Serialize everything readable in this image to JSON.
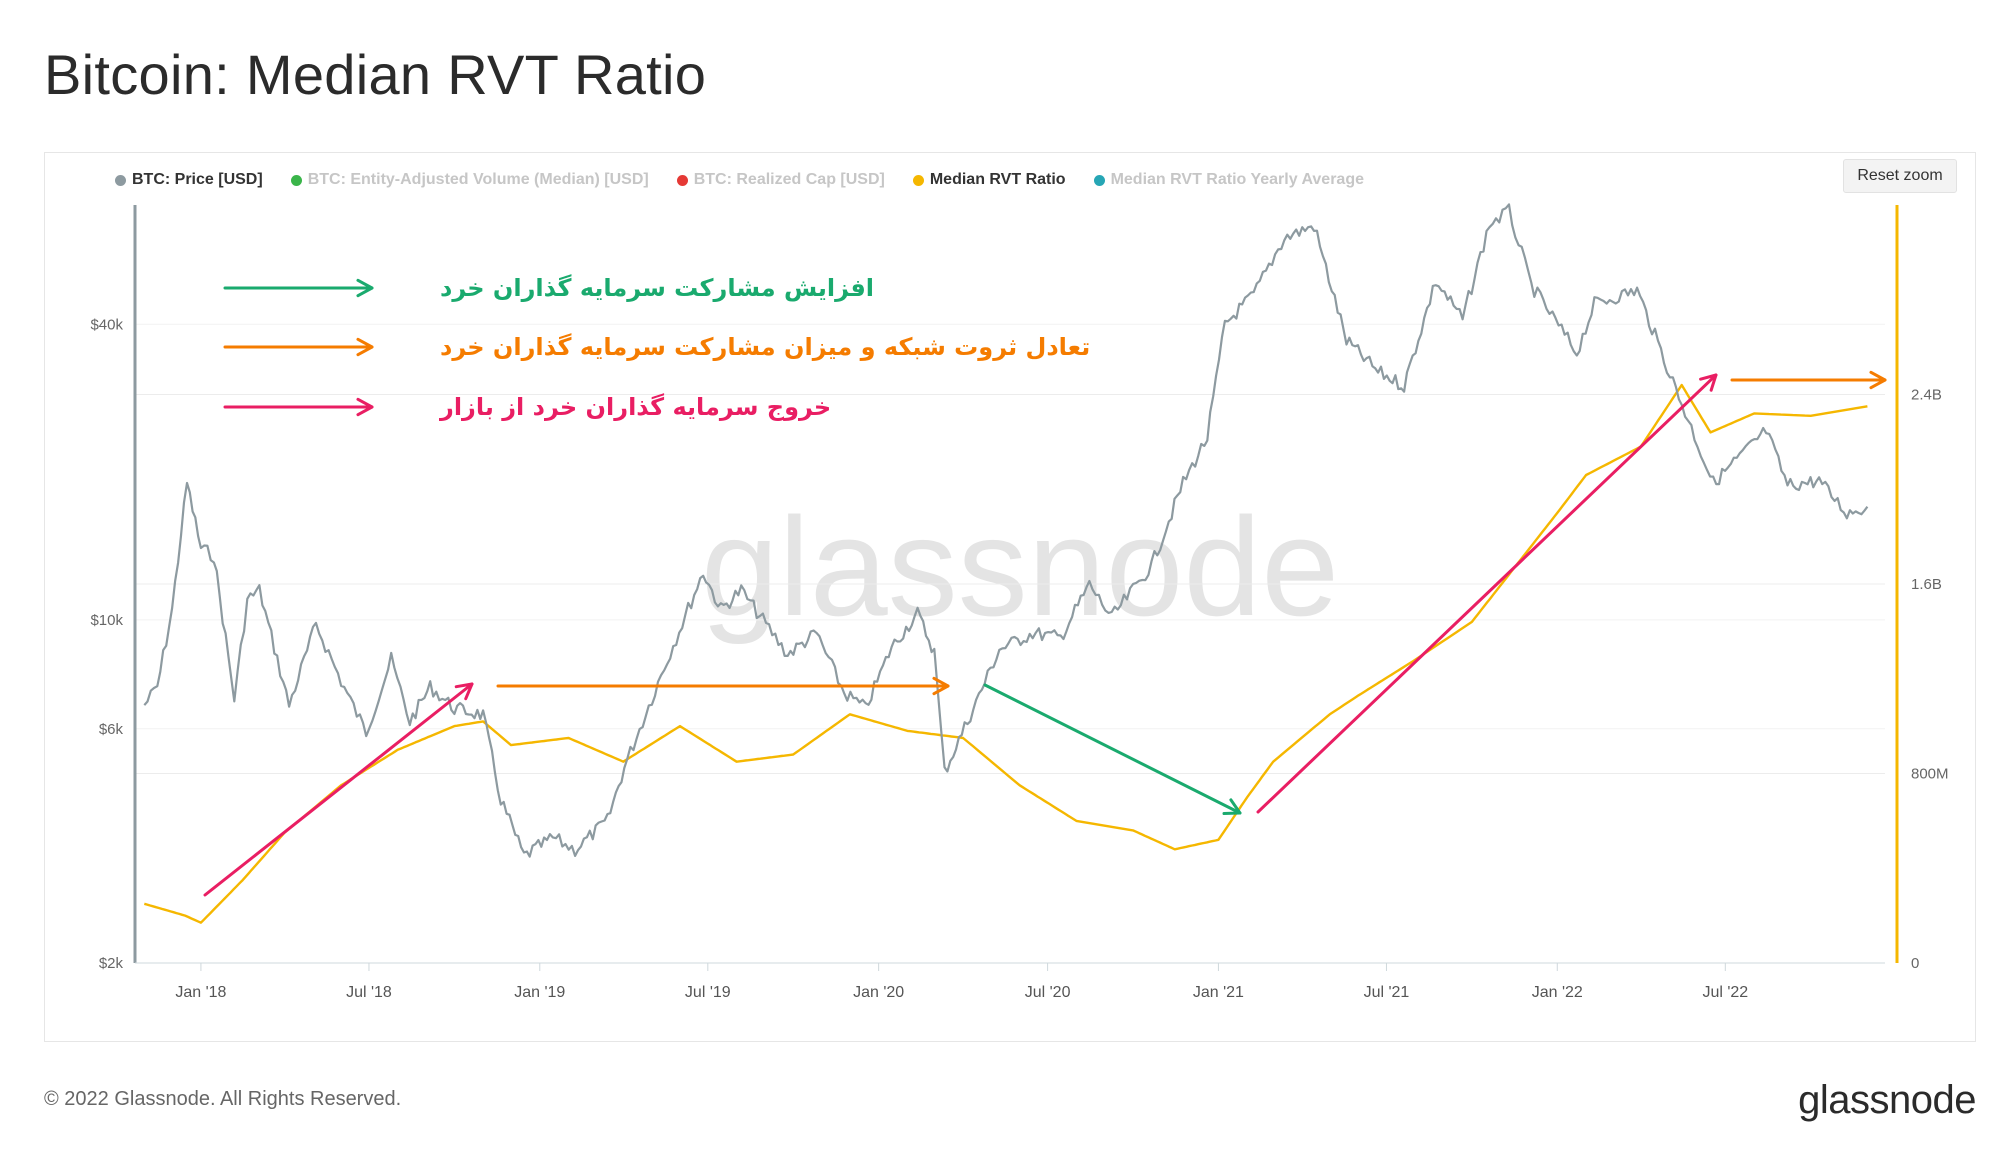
{
  "page": {
    "title": "Bitcoin: Median RVT Ratio",
    "reset_zoom": "Reset zoom",
    "copyright": "© 2022 Glassnode. All Rights Reserved.",
    "logo": "glassnode",
    "watermark": "glassnode"
  },
  "legend": [
    {
      "label": "BTC: Price [USD]",
      "color": "#8d9aa0",
      "active": true
    },
    {
      "label": "BTC: Entity-Adjusted Volume (Median) [USD]",
      "color": "#3ab54a",
      "active": false
    },
    {
      "label": "BTC: Realized Cap [USD]",
      "color": "#e53935",
      "active": false
    },
    {
      "label": "Median RVT Ratio",
      "color": "#f5b700",
      "active": true
    },
    {
      "label": "Median RVT Ratio Yearly Average",
      "color": "#26a6b5",
      "active": false
    }
  ],
  "annotations": {
    "legend_lines": [
      {
        "text": "افزایش مشارکت سرمایه گذاران خرد",
        "color": "#1aaa6e"
      },
      {
        "text": "تعادل ثروت شبکه و میزان مشارکت سرمایه گذاران  خرد",
        "color": "#f57c00"
      },
      {
        "text": "خروج سرمایه گذاران خرد از بازار",
        "color": "#e91e63"
      }
    ]
  },
  "chart_data": {
    "type": "line",
    "x_ticks": [
      "Jan '18",
      "Jul '18",
      "Jan '19",
      "Jul '19",
      "Jan '20",
      "Jul '20",
      "Jan '21",
      "Jul '21",
      "Jan '22",
      "Jul '22"
    ],
    "y_left": {
      "scale": "log",
      "ticks": [
        "$40k",
        "$10k",
        "$6k",
        "$2k"
      ],
      "range": [
        2000,
        70000
      ]
    },
    "y_right": {
      "scale": "linear",
      "ticks": [
        "2.4B",
        "1.6B",
        "800M",
        "0"
      ],
      "range": [
        0,
        3200000000
      ]
    },
    "series": [
      {
        "name": "BTC: Price [USD]",
        "axis": "left",
        "color": "#8d9aa0",
        "points": [
          [
            "2017-11-01",
            6700
          ],
          [
            "2017-11-15",
            7300
          ],
          [
            "2017-12-01",
            10500
          ],
          [
            "2017-12-17",
            19000
          ],
          [
            "2018-01-01",
            14000
          ],
          [
            "2018-01-15",
            13500
          ],
          [
            "2018-02-06",
            6900
          ],
          [
            "2018-02-20",
            11000
          ],
          [
            "2018-03-05",
            11500
          ],
          [
            "2018-04-06",
            6700
          ],
          [
            "2018-05-05",
            9800
          ],
          [
            "2018-06-01",
            7500
          ],
          [
            "2018-06-28",
            5900
          ],
          [
            "2018-07-25",
            8300
          ],
          [
            "2018-08-14",
            6200
          ],
          [
            "2018-09-05",
            7300
          ],
          [
            "2018-10-01",
            6600
          ],
          [
            "2018-11-01",
            6400
          ],
          [
            "2018-11-20",
            4300
          ],
          [
            "2018-12-15",
            3300
          ],
          [
            "2019-01-15",
            3600
          ],
          [
            "2019-02-08",
            3400
          ],
          [
            "2019-03-15",
            3900
          ],
          [
            "2019-04-02",
            5000
          ],
          [
            "2019-05-15",
            8000
          ],
          [
            "2019-06-26",
            12500
          ],
          [
            "2019-07-15",
            10500
          ],
          [
            "2019-08-06",
            11500
          ],
          [
            "2019-09-25",
            8500
          ],
          [
            "2019-10-26",
            9400
          ],
          [
            "2019-11-25",
            7100
          ],
          [
            "2019-12-18",
            6600
          ],
          [
            "2020-01-15",
            8800
          ],
          [
            "2020-02-12",
            10300
          ],
          [
            "2020-03-01",
            8600
          ],
          [
            "2020-03-12",
            4900
          ],
          [
            "2020-04-15",
            6800
          ],
          [
            "2020-05-10",
            8700
          ],
          [
            "2020-06-15",
            9400
          ],
          [
            "2020-07-15",
            9200
          ],
          [
            "2020-08-15",
            11800
          ],
          [
            "2020-09-08",
            10100
          ],
          [
            "2020-10-21",
            12900
          ],
          [
            "2020-11-24",
            19000
          ],
          [
            "2020-12-20",
            23500
          ],
          [
            "2021-01-08",
            40000
          ],
          [
            "2021-02-08",
            46000
          ],
          [
            "2021-03-13",
            60000
          ],
          [
            "2021-04-14",
            63500
          ],
          [
            "2021-05-19",
            37000
          ],
          [
            "2021-06-22",
            32000
          ],
          [
            "2021-07-20",
            30000
          ],
          [
            "2021-08-23",
            49000
          ],
          [
            "2021-09-21",
            41000
          ],
          [
            "2021-10-20",
            64000
          ],
          [
            "2021-11-10",
            68000
          ],
          [
            "2021-12-04",
            48000
          ],
          [
            "2022-01-22",
            35000
          ],
          [
            "2022-02-10",
            44000
          ],
          [
            "2022-03-28",
            47000
          ],
          [
            "2022-05-12",
            28500
          ],
          [
            "2022-06-18",
            19000
          ],
          [
            "2022-08-14",
            24300
          ],
          [
            "2022-09-06",
            18800
          ],
          [
            "2022-10-10",
            19200
          ],
          [
            "2022-11-09",
            16500
          ],
          [
            "2022-12-01",
            17000
          ]
        ]
      },
      {
        "name": "Median RVT Ratio",
        "axis": "right",
        "color": "#f5b700",
        "points": [
          [
            "2017-11-01",
            250000000
          ],
          [
            "2017-12-15",
            200000000
          ],
          [
            "2018-01-01",
            170000000
          ],
          [
            "2018-02-15",
            350000000
          ],
          [
            "2018-04-01",
            550000000
          ],
          [
            "2018-06-01",
            750000000
          ],
          [
            "2018-08-01",
            900000000
          ],
          [
            "2018-10-01",
            1000000000
          ],
          [
            "2018-11-01",
            1020000000
          ],
          [
            "2018-12-01",
            920000000
          ],
          [
            "2019-02-01",
            950000000
          ],
          [
            "2019-04-01",
            850000000
          ],
          [
            "2019-06-01",
            1000000000
          ],
          [
            "2019-08-01",
            850000000
          ],
          [
            "2019-10-01",
            880000000
          ],
          [
            "2019-12-01",
            1050000000
          ],
          [
            "2020-02-01",
            980000000
          ],
          [
            "2020-04-01",
            950000000
          ],
          [
            "2020-06-01",
            750000000
          ],
          [
            "2020-08-01",
            600000000
          ],
          [
            "2020-10-01",
            560000000
          ],
          [
            "2020-11-15",
            480000000
          ],
          [
            "2021-01-01",
            520000000
          ],
          [
            "2021-02-01",
            700000000
          ],
          [
            "2021-03-01",
            850000000
          ],
          [
            "2021-05-01",
            1050000000
          ],
          [
            "2021-06-01",
            1130000000
          ],
          [
            "2021-08-01",
            1280000000
          ],
          [
            "2021-10-01",
            1440000000
          ],
          [
            "2022-01-01",
            1900000000
          ],
          [
            "2022-02-01",
            2060000000
          ],
          [
            "2022-04-01",
            2180000000
          ],
          [
            "2022-05-15",
            2440000000
          ],
          [
            "2022-06-15",
            2240000000
          ],
          [
            "2022-08-01",
            2320000000
          ],
          [
            "2022-10-01",
            2310000000
          ],
          [
            "2022-12-01",
            2350000000
          ]
        ]
      }
    ]
  }
}
